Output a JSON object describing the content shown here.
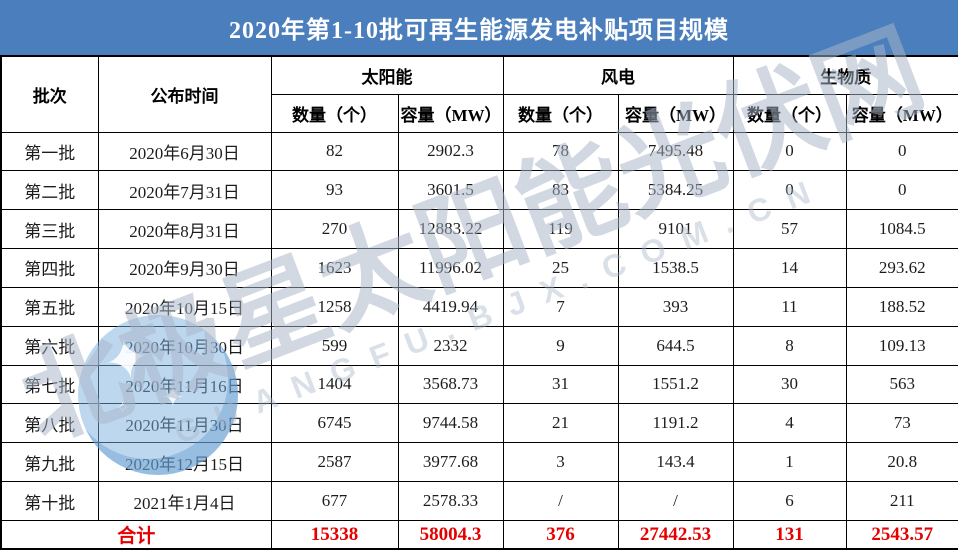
{
  "title": "2020年第1-10批可再生能源发电补贴项目规模",
  "chart_data": {
    "type": "table",
    "title": "2020年第1-10批可再生能源发电补贴项目规模",
    "header": {
      "batch": "批次",
      "date": "公布时间",
      "groups": [
        "太阳能",
        "风电",
        "生物质"
      ],
      "sub_qty": "数量（个）",
      "sub_cap": "容量（MW）"
    },
    "rows": [
      [
        "第一批",
        "2020年6月30日",
        "82",
        "2902.3",
        "78",
        "7495.48",
        "0",
        "0"
      ],
      [
        "第二批",
        "2020年7月31日",
        "93",
        "3601.5",
        "83",
        "5384.25",
        "0",
        "0"
      ],
      [
        "第三批",
        "2020年8月31日",
        "270",
        "12883.22",
        "119",
        "9101",
        "57",
        "1084.5"
      ],
      [
        "第四批",
        "2020年9月30日",
        "1623",
        "11996.02",
        "25",
        "1538.5",
        "14",
        "293.62"
      ],
      [
        "第五批",
        "2020年10月15日",
        "1258",
        "4419.94",
        "7",
        "393",
        "11",
        "188.52"
      ],
      [
        "第六批",
        "2020年10月30日",
        "599",
        "2332",
        "9",
        "644.5",
        "8",
        "109.13"
      ],
      [
        "第七批",
        "2020年11月16日",
        "1404",
        "3568.73",
        "31",
        "1551.2",
        "30",
        "563"
      ],
      [
        "第八批",
        "2020年11月30日",
        "6745",
        "9744.58",
        "21",
        "1191.2",
        "4",
        "73"
      ],
      [
        "第九批",
        "2020年12月15日",
        "2587",
        "3977.68",
        "3",
        "143.4",
        "1",
        "20.8"
      ],
      [
        "第十批",
        "2021年1月4日",
        "677",
        "2578.33",
        "/",
        "/",
        "6",
        "211"
      ]
    ],
    "total": [
      "合计",
      "15338",
      "58004.3",
      "376",
      "27442.53",
      "131",
      "2543.57"
    ]
  },
  "watermark": {
    "text": "北极星太阳能光伏网",
    "subtext": "GUANGFU.BJX.COM.CN"
  },
  "colors": {
    "title_bg": "#4b7ebd",
    "title_text": "#ffffff",
    "total_text": "#e60000",
    "border": "#000000",
    "watermark_text": "#a8b6c8"
  }
}
